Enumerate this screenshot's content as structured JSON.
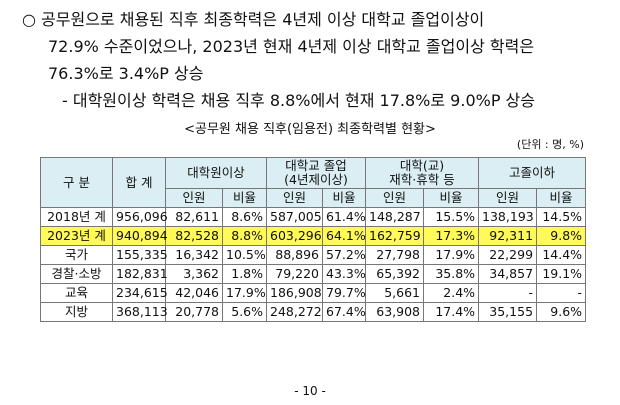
{
  "paragraphs": [
    {
      "lines": [
        "○ 공무원으로 채용된 직후 최종학력은 4년제 이상 대학교 졸업이상이",
        "72.9% 수준이었으나, 2023년 현재 4년제 이상 대학교 졸업이상 학력은",
        "76.3%로 3.4%P 상승"
      ]
    },
    {
      "lines": [
        "- 대학원이상 학력은 채용 직후 8.8%에서 현재 17.8%로 9.0%P 상승"
      ]
    }
  ],
  "table": {
    "caption": "<공무원 채용 직후(임용전) 최종학력별 현황>",
    "unit": "(단위 : 명, %)",
    "header": {
      "groups": [
        [
          "구 분"
        ],
        [
          "합 계"
        ],
        [
          "대학원이상"
        ],
        [
          "대학교 졸업",
          "(4년제이상)"
        ],
        [
          "대학(교)",
          "재학·휴학 등"
        ],
        [
          "고졸이하"
        ]
      ],
      "sub": [
        "인원",
        "비율",
        "인원",
        "비율",
        "인원",
        "비율",
        "인원",
        "비율"
      ]
    },
    "rows": [
      [
        "2018년 계",
        "956,096",
        "82,611",
        "8.6%",
        "587,005",
        "61.4%",
        "148,287",
        "15.5%",
        "138,193",
        "14.5%"
      ],
      [
        "2023년 계",
        "940,894",
        "82,528",
        "8.8%",
        "603,296",
        "64.1%",
        "162,759",
        "17.3%",
        "92,311",
        "9.8%"
      ],
      [
        "국가",
        "155,335",
        "16,342",
        "10.5%",
        "88,896",
        "57.2%",
        "27,798",
        "17.9%",
        "22,299",
        "14.4%"
      ],
      [
        "경찰·소방",
        "182,831",
        "3,362",
        "1.8%",
        "79,220",
        "43.3%",
        "65,392",
        "35.8%",
        "34,857",
        "19.1%"
      ],
      [
        "교육",
        "234,615",
        "42,046",
        "17.9%",
        "186,908",
        "79.7%",
        "5,661",
        "2.4%",
        "-",
        "-"
      ],
      [
        "지방",
        "368,113",
        "20,778",
        "5.6%",
        "248,272",
        "67.4%",
        "63,908",
        "17.4%",
        "35,155",
        "9.6%"
      ]
    ]
  },
  "page_number": "- 10 -"
}
